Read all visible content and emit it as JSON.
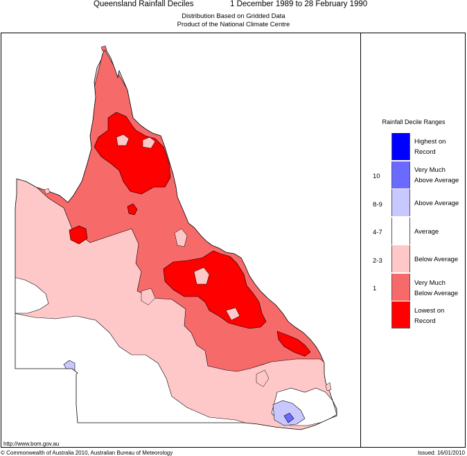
{
  "header": {
    "title": "Queensland Rainfall Deciles",
    "period": "1 December 1989 to 28 February 1990",
    "subtitle_line1": "Distribution Based on Gridded Data",
    "subtitle_line2": "Product of the National Climate Centre"
  },
  "legend": {
    "title": "Rainfall Decile Ranges",
    "items": [
      {
        "code": "",
        "label_line1": "Highest on",
        "label_line2": "Record",
        "color": "#0000ff"
      },
      {
        "code": "10",
        "label_line1": "Very Much",
        "label_line2": "Above Average",
        "color": "#6a6aff"
      },
      {
        "code": "8-9",
        "label_line1": "Above Average",
        "label_line2": "",
        "color": "#c8c8ff"
      },
      {
        "code": "4-7",
        "label_line1": "Average",
        "label_line2": "",
        "color": "#ffffff"
      },
      {
        "code": "2-3",
        "label_line1": "Below Average",
        "label_line2": "",
        "color": "#ffc8c8"
      },
      {
        "code": "1",
        "label_line1": "Very Much",
        "label_line2": "Below Average",
        "color": "#f76a6a"
      },
      {
        "code": "",
        "label_line1": "Lowest on",
        "label_line2": "Record",
        "color": "#ff0000"
      }
    ]
  },
  "footer": {
    "url": "http://www.bom.gov.au",
    "copyright": "© Commonwealth of Australia 2010, Australian Bureau of Meteorology",
    "issued": "Issued: 16/01/2010"
  }
}
